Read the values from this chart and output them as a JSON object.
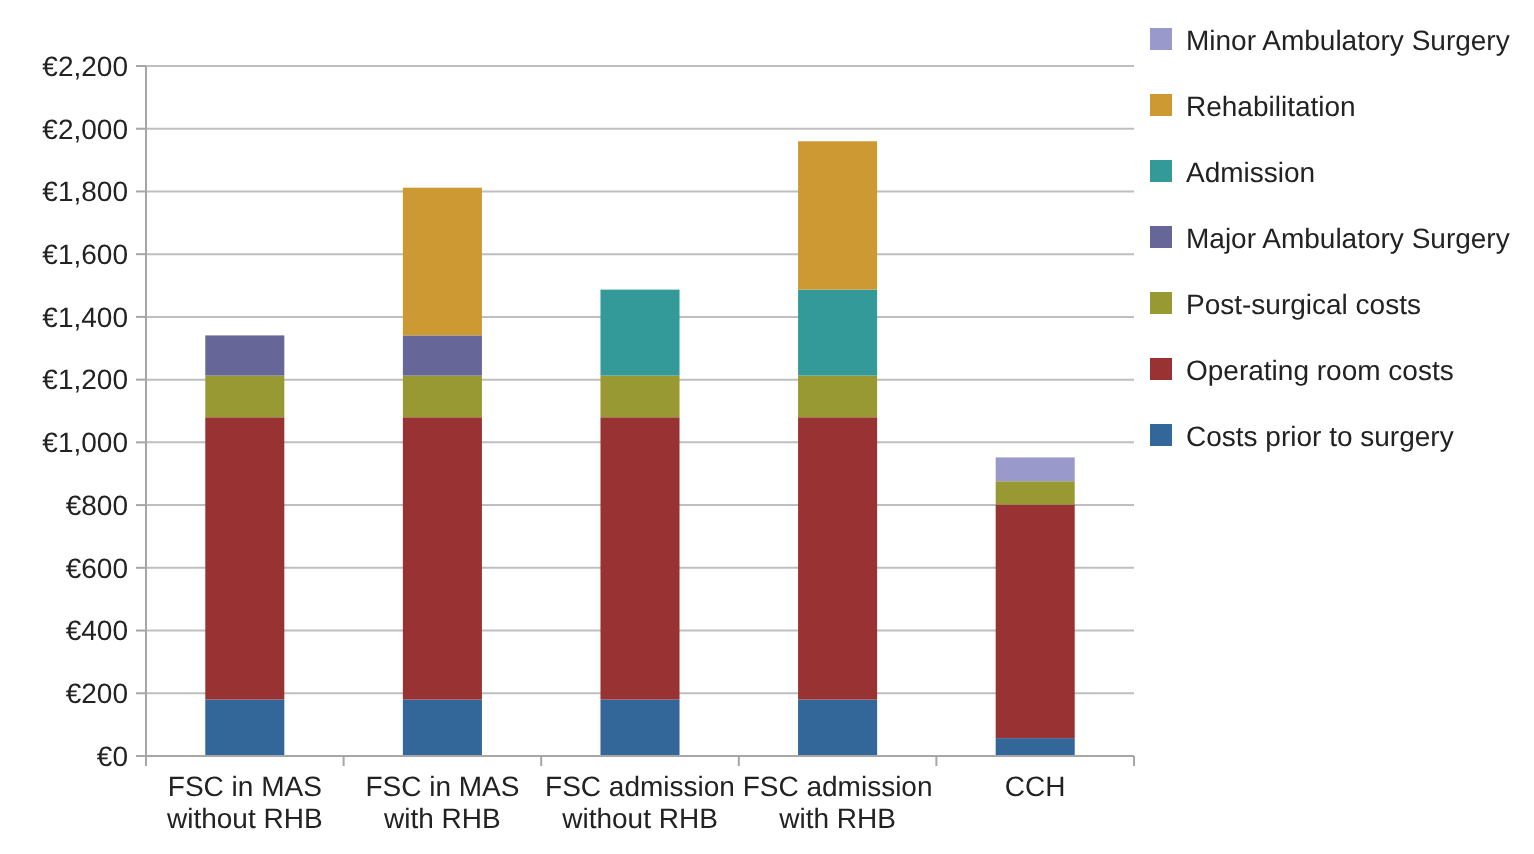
{
  "chart_data": {
    "type": "bar",
    "stacked": true,
    "categories": [
      "FSC in MAS without RHB",
      "FSC in MAS with RHB",
      "FSC admission without RHB",
      "FSC admission with RHB",
      "CCH"
    ],
    "series": [
      {
        "name": "Costs prior to surgery",
        "color": "#336699",
        "values": [
          180,
          180,
          180,
          180,
          57
        ]
      },
      {
        "name": "Operating room costs",
        "color": "#993333",
        "values": [
          900,
          900,
          900,
          900,
          745
        ]
      },
      {
        "name": "Post-surgical costs",
        "color": "#999933",
        "values": [
          133,
          133,
          133,
          133,
          74
        ]
      },
      {
        "name": "Major Ambulatory Surgery",
        "color": "#666699",
        "values": [
          128,
          128,
          null,
          null,
          null
        ]
      },
      {
        "name": "Admission",
        "color": "#339999",
        "values": [
          null,
          null,
          274,
          274,
          null
        ]
      },
      {
        "name": "Rehabilitation",
        "color": "#cc9933",
        "values": [
          null,
          471,
          null,
          473,
          null
        ]
      },
      {
        "name": "Minor Ambulatory Surgery",
        "color": "#9999cc",
        "values": [
          null,
          null,
          null,
          null,
          76
        ]
      }
    ],
    "ylim": [
      0,
      2200
    ],
    "yticks": [
      {
        "value": 0,
        "label": "€0"
      },
      {
        "value": 200,
        "label": "€200"
      },
      {
        "value": 400,
        "label": "€400"
      },
      {
        "value": 600,
        "label": "€600"
      },
      {
        "value": 800,
        "label": "€800"
      },
      {
        "value": 1000,
        "label": "€1,000"
      },
      {
        "value": 1200,
        "label": "€1,200"
      },
      {
        "value": 1400,
        "label": "€1,400"
      },
      {
        "value": 1600,
        "label": "€1,600"
      },
      {
        "value": 1800,
        "label": "€1,800"
      },
      {
        "value": 2000,
        "label": "€2,000"
      },
      {
        "value": 2200,
        "label": "€2,200"
      }
    ],
    "grid": "y",
    "legend": "top right"
  }
}
